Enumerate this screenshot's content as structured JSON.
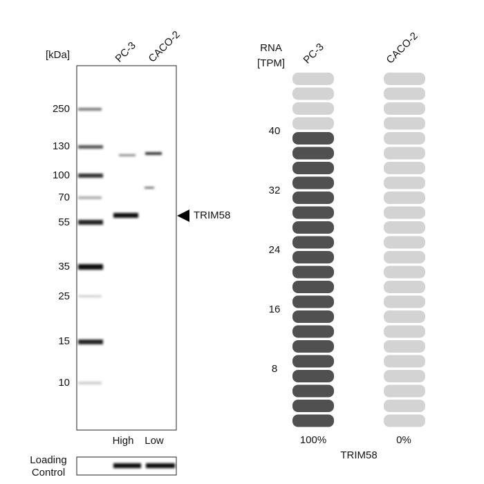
{
  "blot": {
    "unit_label": "[kDa]",
    "lanes": [
      "PC-3",
      "CACO-2"
    ],
    "markers": [
      "250",
      "130",
      "100",
      "70",
      "55",
      "35",
      "25",
      "15",
      "10"
    ],
    "target": "TRIM58",
    "expression": [
      "High",
      "Low"
    ],
    "loading_control": [
      "Loading",
      "Control"
    ]
  },
  "rna": {
    "axis_label": [
      "RNA",
      "[TPM]"
    ],
    "lanes": [
      "PC-3",
      "CACO-2"
    ],
    "ticks": [
      "40",
      "32",
      "24",
      "16",
      "8"
    ],
    "percentages": [
      "100%",
      "0%"
    ],
    "gene": "TRIM58"
  }
}
